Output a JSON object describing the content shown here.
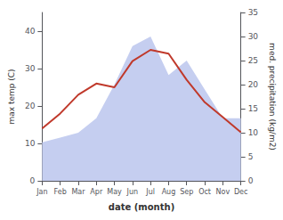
{
  "chart_data": {
    "type": "line",
    "xlabel": "date (month)",
    "ylabel": "max temp (C)",
    "y2label": "med. precipitation (kg/m2)",
    "categories": [
      "Jan",
      "Feb",
      "Mar",
      "Apr",
      "May",
      "Jun",
      "Jul",
      "Aug",
      "Sep",
      "Oct",
      "Nov",
      "Dec"
    ],
    "series": [
      {
        "type": "area",
        "axis": "y2",
        "color": "#c5cef0",
        "values": [
          8,
          9,
          10,
          13,
          20,
          28,
          30,
          22,
          25,
          19,
          13,
          13
        ]
      },
      {
        "type": "line",
        "color": "#c0392b",
        "values": [
          14,
          18,
          23,
          26,
          25,
          32,
          35,
          34,
          27,
          21,
          17,
          13
        ]
      }
    ],
    "ylim": [
      0,
      45
    ],
    "yticks": [
      0,
      10,
      20,
      30,
      40
    ],
    "y2lim": [
      0,
      35
    ],
    "y2ticks": [
      0,
      5,
      10,
      15,
      20,
      25,
      30,
      35
    ],
    "grid": false
  }
}
